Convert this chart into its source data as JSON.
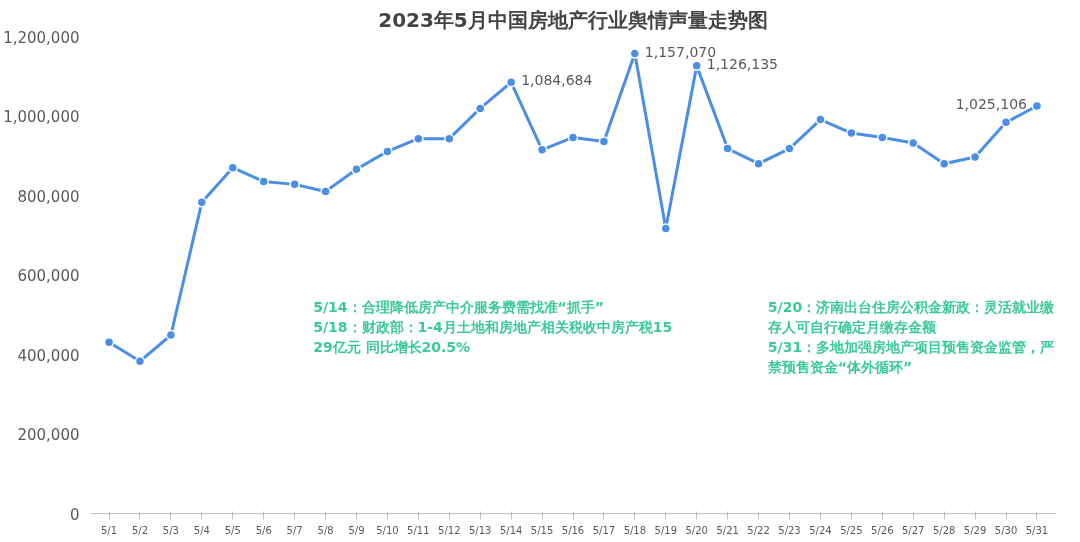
{
  "chart_data": {
    "type": "line",
    "title": "2023年5月中国房地产行业舆情声量走势图",
    "categories": [
      "5/1",
      "5/2",
      "5/3",
      "5/4",
      "5/5",
      "5/6",
      "5/7",
      "5/8",
      "5/9",
      "5/10",
      "5/11",
      "5/12",
      "5/13",
      "5/14",
      "5/15",
      "5/16",
      "5/17",
      "5/18",
      "5/19",
      "5/20",
      "5/21",
      "5/22",
      "5/23",
      "5/24",
      "5/25",
      "5/26",
      "5/27",
      "5/28",
      "5/29",
      "5/30",
      "5/31"
    ],
    "series": [
      {
        "color": "#4a8ee6",
        "values": [
          431000,
          383000,
          449000,
          783000,
          870000,
          835000,
          828000,
          810000,
          866000,
          911000,
          943000,
          943000,
          1019000,
          1084684,
          915000,
          946000,
          936000,
          1157070,
          717000,
          1126135,
          918000,
          880000,
          918000,
          991000,
          957000,
          946000,
          932000,
          880000,
          897000,
          984000,
          1025106
        ],
        "value_labels": [
          null,
          null,
          null,
          null,
          null,
          null,
          null,
          null,
          null,
          null,
          null,
          null,
          null,
          "1,084,684",
          null,
          null,
          null,
          "1,157,070",
          null,
          "1,126,135",
          null,
          null,
          null,
          null,
          null,
          null,
          null,
          null,
          null,
          null,
          "1,025,106"
        ]
      }
    ],
    "ylim": [
      0,
      1200000
    ],
    "yticks": [
      {
        "value": 0,
        "label": "0"
      },
      {
        "value": 200000,
        "label": "200,000"
      },
      {
        "value": 400000,
        "label": "400,000"
      },
      {
        "value": 600000,
        "label": "600,000"
      },
      {
        "value": 800000,
        "label": "800,000"
      },
      {
        "value": 1000000,
        "label": "1,000,000"
      },
      {
        "value": 1200000,
        "label": "1,200,000"
      }
    ],
    "grid": false,
    "marker": "circle",
    "line_style": "solid",
    "annotations": [
      "5/14：合理降低房产中介服务费需找准“抓手”",
      "5/18：财政部：1-4月土地和房地产相关税收中房产税1529亿元 同比增长20.5%",
      "5/20：济南出台住房公积金新政：灵活就业缴存人可自行确定月缴存金额",
      "5/31：多地加强房地产项目预售资金监管，严禁预售资金“体外循环”"
    ]
  }
}
